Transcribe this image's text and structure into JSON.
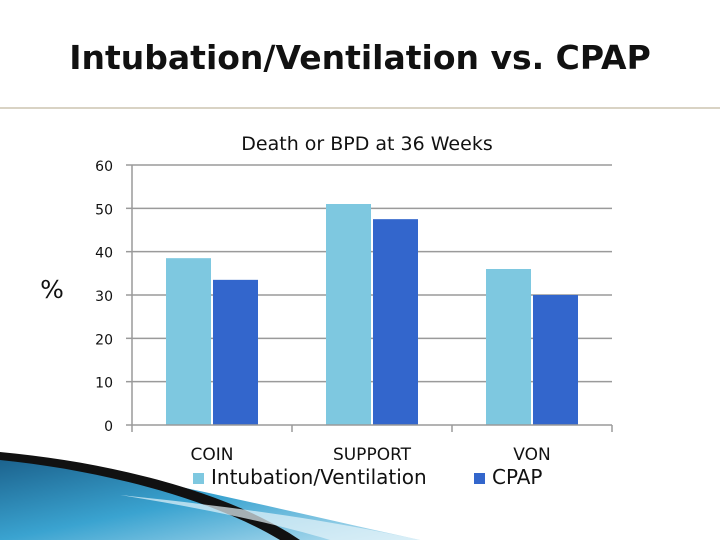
{
  "slide": {
    "title": "Intubation/Ventilation vs. CPAP"
  },
  "chart_data": {
    "type": "bar",
    "title": "Death or BPD at 36 Weeks",
    "ylabel": "%",
    "xlabel": "",
    "categories": [
      "COIN",
      "SUPPORT",
      "VON"
    ],
    "series": [
      {
        "name": "Intubation/Ventilation",
        "values": [
          38.5,
          51,
          36
        ],
        "color": "#7ec8e0"
      },
      {
        "name": "CPAP",
        "values": [
          33.5,
          47.5,
          30
        ],
        "color": "#3366cc"
      }
    ],
    "ylim": [
      0,
      60
    ],
    "yticks": [
      0,
      10,
      20,
      30,
      40,
      50,
      60
    ],
    "grid": true,
    "legend_position": "bottom"
  },
  "colors": {
    "gridline": "#9a9a9a",
    "rule": "#d9d3c4",
    "swoosh_dark": "#111111",
    "swoosh_blue": "#2a8fc0"
  }
}
